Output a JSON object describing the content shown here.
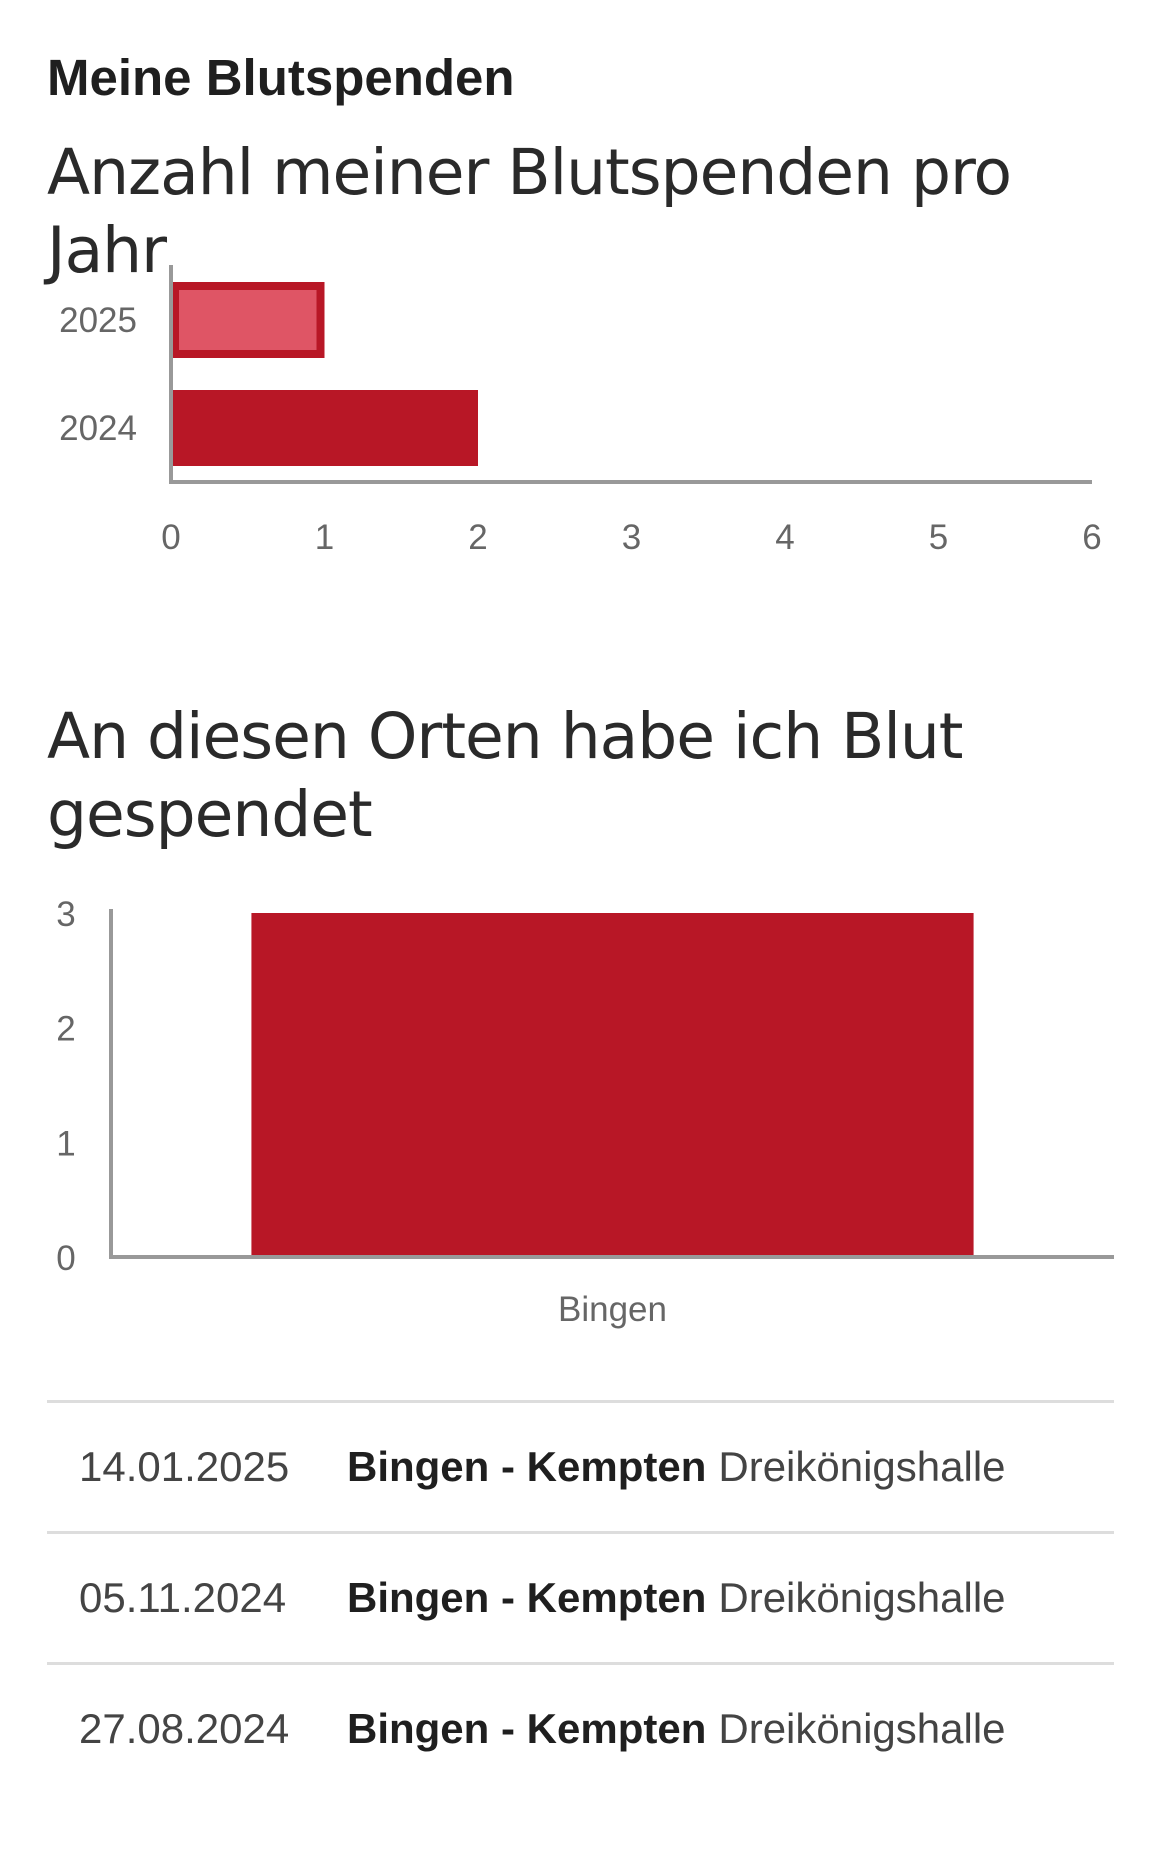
{
  "page": {
    "heading": "Meine Blutspenden"
  },
  "chart_data": [
    {
      "type": "bar",
      "orientation": "horizontal",
      "title": "Anzahl meiner Blutspenden pro Jahr",
      "categories": [
        "2025",
        "2024"
      ],
      "values": [
        1,
        2
      ],
      "xlim": [
        0,
        6
      ],
      "xticks": [
        "0",
        "1",
        "2",
        "3",
        "4",
        "5",
        "6"
      ],
      "highlighted_category": "2025",
      "colors": {
        "bar": "#b81726",
        "highlight_fill": "#df5565",
        "axis": "#999999"
      }
    },
    {
      "type": "bar",
      "orientation": "vertical",
      "title": "An diesen Orten habe ich Blut gespendet",
      "categories": [
        "Bingen"
      ],
      "values": [
        3
      ],
      "ylim": [
        0,
        3
      ],
      "yticks": [
        "0",
        "1",
        "2",
        "3"
      ],
      "colors": {
        "bar": "#b81726",
        "axis": "#999999"
      }
    }
  ],
  "donations": [
    {
      "date": "14.01.2025",
      "city": "Bingen",
      "separator": "-",
      "location": "Kempten",
      "venue": "Dreikönigshalle"
    },
    {
      "date": "05.11.2024",
      "city": "Bingen",
      "separator": "-",
      "location": "Kempten",
      "venue": "Dreikönigshalle"
    },
    {
      "date": "27.08.2024",
      "city": "Bingen",
      "separator": "-",
      "location": "Kempten",
      "venue": "Dreikönigshalle"
    }
  ]
}
